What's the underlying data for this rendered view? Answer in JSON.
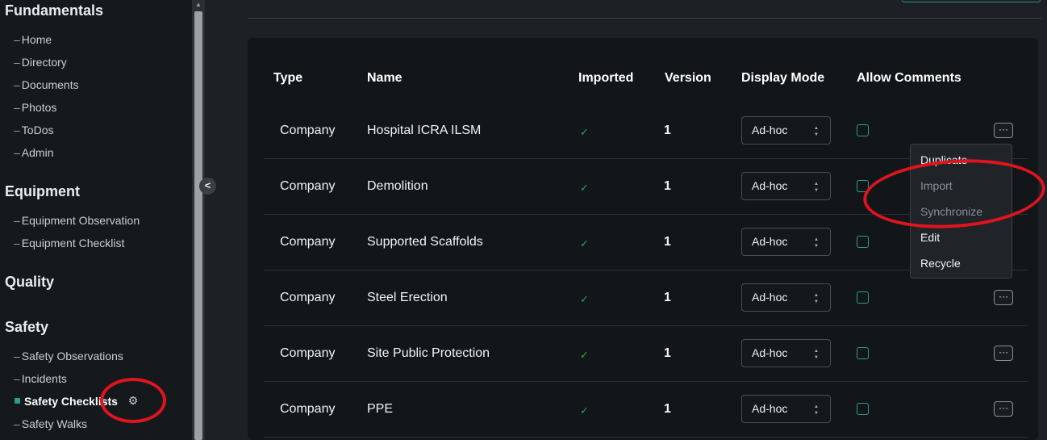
{
  "sidebar": {
    "sections": [
      {
        "title": "Fundamentals",
        "items": [
          "Home",
          "Directory",
          "Documents",
          "Photos",
          "ToDos",
          "Admin"
        ]
      },
      {
        "title": "Equipment",
        "items": [
          "Equipment Observation",
          "Equipment Checklist"
        ]
      },
      {
        "title": "Quality",
        "items": []
      },
      {
        "title": "Safety",
        "items": [
          "Safety Observations",
          "Incidents",
          "Safety Checklists",
          "Safety Walks"
        ]
      }
    ],
    "dash": "–",
    "active_item": "Safety Checklists",
    "gear_icon": "⚙",
    "accent_color": "#2e9c8e"
  },
  "collapse_button": {
    "glyph": "<"
  },
  "table": {
    "headers": {
      "type": "Type",
      "name": "Name",
      "imported": "Imported",
      "version": "Version",
      "display_mode": "Display Mode",
      "allow_comments": "Allow Comments"
    },
    "check_glyph": "✓",
    "chevron_glyph": "⌃⌄",
    "more_glyph": "···",
    "rows": [
      {
        "type": "Company",
        "name": "Hospital ICRA ILSM",
        "imported": true,
        "version": "1",
        "display_mode": "Ad-hoc"
      },
      {
        "type": "Company",
        "name": "Demolition",
        "imported": true,
        "version": "1",
        "display_mode": "Ad-hoc"
      },
      {
        "type": "Company",
        "name": "Supported Scaffolds",
        "imported": true,
        "version": "1",
        "display_mode": "Ad-hoc"
      },
      {
        "type": "Company",
        "name": "Steel Erection",
        "imported": true,
        "version": "1",
        "display_mode": "Ad-hoc"
      },
      {
        "type": "Company",
        "name": "Site Public Protection",
        "imported": true,
        "version": "1",
        "display_mode": "Ad-hoc"
      },
      {
        "type": "Company",
        "name": "PPE",
        "imported": true,
        "version": "1",
        "display_mode": "Ad-hoc"
      }
    ]
  },
  "context_menu": {
    "items": [
      {
        "label": "Duplicate",
        "enabled": true
      },
      {
        "label": "Import",
        "enabled": false
      },
      {
        "label": "Synchronize",
        "enabled": false
      },
      {
        "label": "Edit",
        "enabled": true
      },
      {
        "label": "Recycle",
        "enabled": true
      }
    ]
  },
  "annotation_color": "#e0141e"
}
